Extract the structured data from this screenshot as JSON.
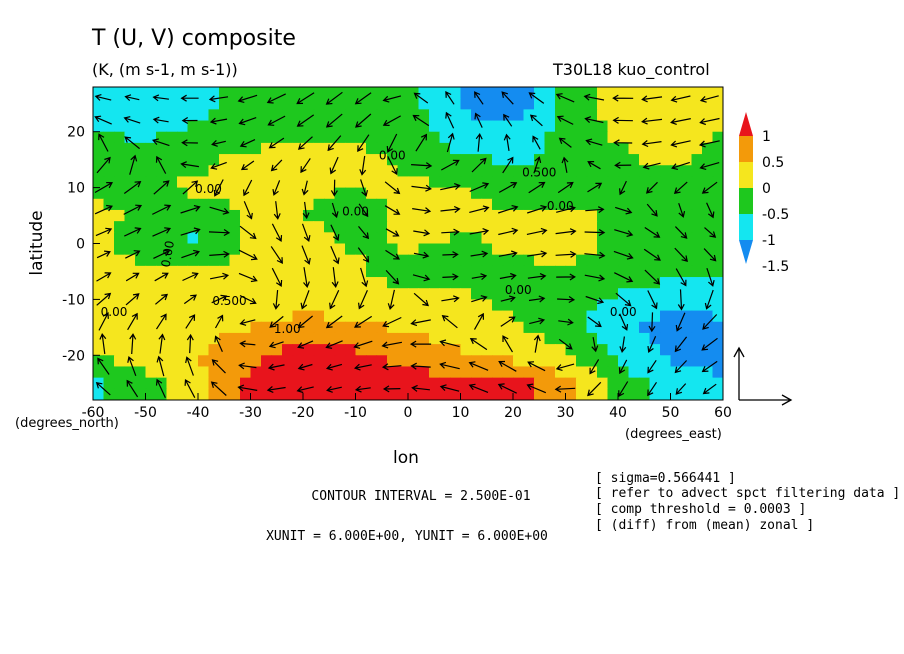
{
  "title": "T (U, V) composite",
  "subtitle": "(K, (m s-1, m s-1))",
  "run_label": "T30L18 kuo_control",
  "x_axis": {
    "label": "lon",
    "unit": "(degrees_east)",
    "ticks": [
      "-60",
      "-50",
      "-40",
      "-30",
      "-20",
      "-10",
      "0",
      "10",
      "20",
      "30",
      "40",
      "50",
      "60"
    ]
  },
  "y_axis": {
    "label": "latitude",
    "unit": "(degrees_north)",
    "ticks": [
      "20",
      "10",
      "0",
      "-10",
      "-20"
    ]
  },
  "colorbar": {
    "labels": [
      "1",
      "0.5",
      "0",
      "-0.5",
      "-1",
      "-1.5"
    ],
    "colors": [
      "#e8141c",
      "#f39a0a",
      "#f5e61e",
      "#1ec81e",
      "#14e6f0",
      "#148cf0"
    ]
  },
  "contour_labels": [
    "0.00",
    "0.500",
    "0.00",
    "0.00",
    "0.00",
    "0.00",
    "0.500",
    "1.00",
    "0.00",
    "0.00",
    "0.00"
  ],
  "footer": {
    "contour_interval": "CONTOUR INTERVAL = 2.500E-01",
    "units": "XUNIT = 6.000E+00, YUNIT = 6.000E+00"
  },
  "notes": [
    "[ sigma=0.566441 ]",
    "[ refer to advect spct filtering data ]",
    "[ comp threshold = 0.0003 ]",
    "[ (diff) from (mean) zonal ]"
  ],
  "chart_data": {
    "type": "heatmap",
    "title": "T (U, V) composite",
    "subtitle": "(K, (m s-1, m s-1))",
    "xlabel": "lon",
    "ylabel": "latitude",
    "xlim": [
      -60,
      60
    ],
    "ylim": [
      -28,
      28
    ],
    "levels": [
      -1.5,
      -1,
      -0.5,
      0,
      0.5,
      1
    ],
    "contour_interval": 0.25,
    "x": [
      -60,
      -50,
      -40,
      -30,
      -20,
      -10,
      0,
      10,
      20,
      30,
      40,
      50,
      60
    ],
    "y": [
      25,
      20,
      15,
      10,
      5,
      0,
      -5,
      -10,
      -15,
      -20,
      -25
    ],
    "values": [
      [
        -0.6,
        -0.9,
        -0.7,
        -0.3,
        -0.3,
        -0.2,
        -0.3,
        -1.0,
        -1.4,
        -0.4,
        0.2,
        0.4,
        0.1
      ],
      [
        -0.5,
        -0.6,
        -0.4,
        -0.2,
        -0.1,
        -0.1,
        -0.3,
        -0.8,
        -0.9,
        -0.3,
        0.1,
        0.2,
        0.0
      ],
      [
        -0.3,
        -0.2,
        -0.1,
        0.1,
        0.2,
        0.1,
        -0.1,
        -0.4,
        -0.6,
        -0.3,
        -0.1,
        0.1,
        -0.2
      ],
      [
        -0.1,
        -0.1,
        0.1,
        0.2,
        0.1,
        0.0,
        0.1,
        0.0,
        -0.2,
        -0.3,
        -0.2,
        -0.3,
        -0.2
      ],
      [
        0.1,
        -0.1,
        -0.3,
        0.1,
        0.0,
        -0.2,
        0.1,
        0.2,
        0.0,
        0.2,
        -0.2,
        -0.3,
        -0.1
      ],
      [
        0.1,
        -0.2,
        -0.6,
        0.1,
        0.2,
        -0.1,
        0.1,
        -0.1,
        0.1,
        0.2,
        -0.1,
        -0.2,
        0.0
      ],
      [
        0.2,
        0.1,
        0.1,
        0.2,
        0.1,
        0.1,
        -0.3,
        -0.2,
        -0.1,
        -0.1,
        -0.2,
        -0.3,
        -0.3
      ],
      [
        0.1,
        0.2,
        0.1,
        0.2,
        0.3,
        0.2,
        0.1,
        0.1,
        -0.1,
        -0.2,
        -0.6,
        -0.9,
        -0.8
      ],
      [
        0.1,
        0.2,
        0.3,
        0.5,
        0.7,
        0.6,
        0.4,
        0.2,
        0.1,
        -0.3,
        -0.9,
        -1.2,
        -1.1
      ],
      [
        0.0,
        0.2,
        0.5,
        0.9,
        1.2,
        1.1,
        0.8,
        0.6,
        0.3,
        0.1,
        -0.6,
        -1.1,
        -1.2
      ],
      [
        -0.6,
        -0.2,
        0.4,
        1.1,
        1.6,
        1.6,
        1.3,
        1.1,
        1.2,
        0.6,
        -0.2,
        -0.7,
        -0.9
      ]
    ]
  }
}
